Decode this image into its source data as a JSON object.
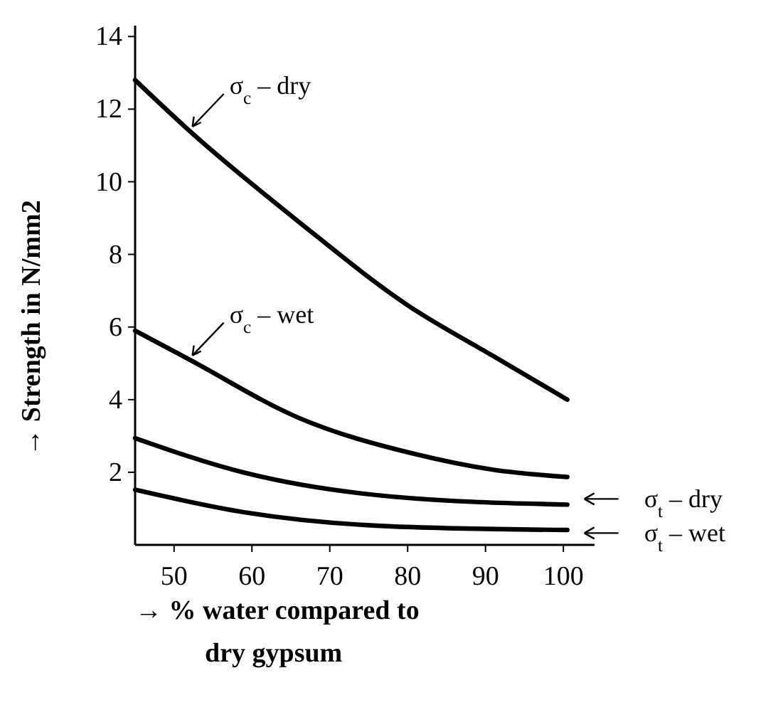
{
  "chart_data": {
    "type": "line",
    "xlabel": "→ % water compared to dry gypsum",
    "ylabel": "→ Strength in N/mm2",
    "xlim": [
      45,
      104
    ],
    "xticks": [
      50,
      60,
      70,
      80,
      90,
      100
    ],
    "ylim": [
      0,
      14.3
    ],
    "yticks": [
      2,
      4,
      6,
      8,
      10,
      12,
      14
    ],
    "grid": false,
    "legend": "right",
    "marker": "none",
    "line_style": "solid",
    "series": [
      {
        "name": "σ$_{c}$ – dry",
        "color": "#000000",
        "x": [
          45,
          52,
          66,
          80,
          91,
          100.5
        ],
        "values": [
          12.8,
          11.4,
          8.9,
          6.6,
          5.2,
          4.0
        ]
      },
      {
        "name": "σ$_{c}$ – wet",
        "color": "#000000",
        "x": [
          45,
          52,
          66,
          81,
          91,
          100.5
        ],
        "values": [
          5.9,
          5.1,
          3.5,
          2.5,
          2.07,
          1.87
        ]
      },
      {
        "name": "σ$_{t}$ – dry",
        "color": "#000000",
        "x": [
          45,
          59,
          78,
          100.5
        ],
        "values": [
          2.94,
          1.99,
          1.33,
          1.11
        ]
      },
      {
        "name": "σ$_{t}$ – wet",
        "color": "#000000",
        "x": [
          45,
          59,
          78,
          100.5
        ],
        "values": [
          1.52,
          0.9,
          0.51,
          0.41
        ]
      }
    ]
  }
}
